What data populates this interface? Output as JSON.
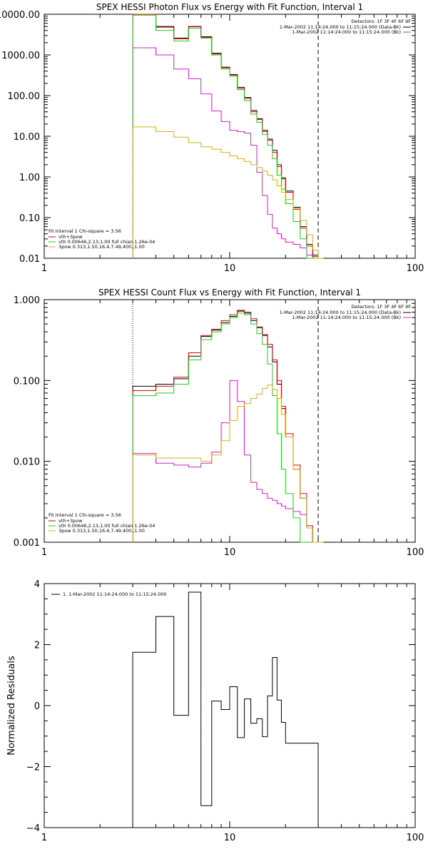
{
  "chart_data": [
    {
      "type": "line",
      "title": "SPEX HESSI Photon Flux vs Energy with Fit Function, Interval 1",
      "xscale": "log",
      "yscale": "log",
      "xlim": [
        1,
        100
      ],
      "ylim": [
        0.01,
        10000
      ],
      "x_ticks": [
        1,
        10,
        100
      ],
      "x_tick_labels": [
        "1",
        "10",
        "100"
      ],
      "y_ticks": [
        0.01,
        0.1,
        1,
        10,
        100,
        1000,
        10000
      ],
      "y_tick_labels": [
        "0.01",
        "0.10",
        "1.00",
        "10.00",
        "100.00",
        "1000.00",
        "10000.00"
      ],
      "vlines": [
        {
          "x": 3.0,
          "color": "#d4b21a",
          "style": "dotted"
        },
        {
          "x": 30.0,
          "color": "#000000",
          "style": "dashed"
        }
      ],
      "legend_top": {
        "detectors": "Detectors: 1F 3F 4F 6F 9F",
        "entries": [
          {
            "label": "1-Mar-2002 11:14:24.000 to 11:15:24.000 (Data-Bk)",
            "color": "#000000"
          },
          {
            "label": "1-Mar-2002 11:14:24.000 to 11:15:24.000 (Bk)",
            "color": "#cc22cc"
          }
        ]
      },
      "legend_bottom": {
        "header": "Fit Interval 1   Chi-square = 3.56",
        "entries": [
          {
            "label": "vth+3pow",
            "color": "#dd0000"
          },
          {
            "label": "vth 0.00646,2.13,1.00  full chian 1.26e-04",
            "color": "#22cc22"
          },
          {
            "label": "3pow 0.313,1.50,16.4,7.49,400.,1.00",
            "color": "#d4b21a"
          }
        ]
      },
      "bin_edges": [
        3.0,
        4.0,
        5.0,
        6.0,
        7.0,
        8.0,
        9.0,
        10.0,
        11.0,
        12.0,
        13.0,
        14.0,
        15.0,
        16.0,
        17.0,
        18.0,
        19.0,
        20.0,
        22.0,
        24.0,
        26.0,
        28.0,
        30.0,
        32.0
      ],
      "series": [
        {
          "name": "Data-Bk",
          "color": "#000000",
          "values": [
            10000,
            5000,
            2600,
            5000,
            2800,
            1100,
            500,
            330,
            160,
            90,
            43,
            27,
            14,
            8.5,
            4.5,
            2.0,
            0.95,
            0.45,
            0.18,
            0.06,
            0.022,
            0.012,
            0.01
          ]
        },
        {
          "name": "Bk",
          "color": "#cc22cc",
          "values": [
            1500,
            1000,
            450,
            260,
            110,
            42,
            23,
            14,
            13,
            12,
            6,
            1.3,
            0.35,
            0.12,
            0.055,
            0.04,
            0.03,
            0.025,
            0.022,
            0.018,
            0.012,
            0.01,
            0.01
          ]
        },
        {
          "name": "vth+3pow",
          "color": "#dd0000",
          "values": [
            10000,
            4800,
            2500,
            4900,
            2700,
            1050,
            480,
            320,
            150,
            85,
            40,
            26,
            13,
            8.0,
            4.0,
            1.8,
            0.9,
            0.42,
            0.16,
            0.055,
            0.02,
            0.011,
            0.01
          ]
        },
        {
          "name": "vth",
          "color": "#22cc22",
          "values": [
            9500,
            4000,
            2200,
            4500,
            2600,
            1000,
            450,
            300,
            140,
            75,
            35,
            22,
            11,
            6.0,
            2.8,
            1.1,
            0.5,
            0.22,
            0.08,
            0.03,
            0.01,
            0.01,
            0.01
          ]
        },
        {
          "name": "3pow",
          "color": "#d4b21a",
          "values": [
            17,
            13,
            9.5,
            7.0,
            5.5,
            4.8,
            4.0,
            3.3,
            2.8,
            2.4,
            2.0,
            1.7,
            1.4,
            1.1,
            0.85,
            0.6,
            0.42,
            0.28,
            0.17,
            0.085,
            0.038,
            0.016,
            0.01
          ]
        }
      ]
    },
    {
      "type": "line",
      "title": "SPEX HESSI Count Flux vs Energy with Fit Function, Interval 1",
      "xscale": "log",
      "yscale": "log",
      "xlim": [
        1,
        100
      ],
      "ylim": [
        0.001,
        1
      ],
      "x_ticks": [
        1,
        10,
        100
      ],
      "x_tick_labels": [
        "1",
        "10",
        "100"
      ],
      "y_ticks": [
        0.001,
        0.01,
        0.1,
        1
      ],
      "y_tick_labels": [
        "0.001",
        "0.010",
        "0.100",
        "1.000"
      ],
      "vlines": [
        {
          "x": 3.0,
          "color": "#000000",
          "style": "dotted"
        },
        {
          "x": 30.0,
          "color": "#000000",
          "style": "dashed"
        }
      ],
      "legend_top": {
        "detectors": "Detectors: 1F 3F 4F 6F 9F",
        "entries": [
          {
            "label": "1-Mar-2002 11:14:24.000 to 11:15:24.000 (Data-Bk)",
            "color": "#000000"
          },
          {
            "label": "1-Mar-2002 11:14:24.000 to 11:15:24.000 (Bk)",
            "color": "#cc22cc"
          }
        ]
      },
      "legend_bottom": {
        "header": "Fit Interval 1   Chi-square = 3.56",
        "entries": [
          {
            "label": "vth+3pow",
            "color": "#dd0000"
          },
          {
            "label": "vth 0.00646,2.13,1.00  full chian 1.26e-04",
            "color": "#22cc22"
          },
          {
            "label": "3pow 0.313,1.50,16.4,7.49,400.,1.00",
            "color": "#d4b21a"
          }
        ]
      },
      "bin_edges": [
        3.0,
        4.0,
        5.0,
        6.0,
        7.0,
        8.0,
        9.0,
        10.0,
        11.0,
        12.0,
        13.0,
        14.0,
        15.0,
        16.0,
        17.0,
        18.0,
        19.0,
        20.0,
        22.0,
        24.0,
        26.0,
        28.0,
        30.0,
        32.0
      ],
      "series": [
        {
          "name": "Data-Bk",
          "color": "#000000",
          "values": [
            0.085,
            0.09,
            0.105,
            0.2,
            0.35,
            0.42,
            0.52,
            0.62,
            0.72,
            0.68,
            0.55,
            0.45,
            0.36,
            0.26,
            0.17,
            0.09,
            0.045,
            0.02,
            0.008,
            0.0035,
            0.0015,
            0.001,
            0.001
          ]
        },
        {
          "name": "Bk",
          "color": "#cc22cc",
          "values": [
            0.0125,
            0.0095,
            0.009,
            0.0085,
            0.0095,
            0.013,
            0.03,
            0.1,
            0.055,
            0.012,
            0.0055,
            0.0045,
            0.004,
            0.0035,
            0.0033,
            0.003,
            0.0028,
            0.0026,
            0.0024,
            0.0022,
            0.0015,
            0.001,
            0.001
          ]
        },
        {
          "name": "vth+3pow",
          "color": "#dd0000",
          "values": [
            0.075,
            0.085,
            0.11,
            0.22,
            0.36,
            0.43,
            0.55,
            0.65,
            0.74,
            0.7,
            0.58,
            0.46,
            0.37,
            0.28,
            0.18,
            0.1,
            0.048,
            0.022,
            0.009,
            0.004,
            0.0016,
            0.001,
            0.001
          ]
        },
        {
          "name": "vth",
          "color": "#22cc22",
          "values": [
            0.065,
            0.07,
            0.09,
            0.18,
            0.32,
            0.4,
            0.5,
            0.6,
            0.68,
            0.65,
            0.5,
            0.38,
            0.28,
            0.16,
            0.065,
            0.022,
            0.008,
            0.004,
            0.002,
            0.001,
            0.001,
            0.001,
            0.001
          ]
        },
        {
          "name": "3pow",
          "color": "#d4b21a",
          "values": [
            0.012,
            0.011,
            0.011,
            0.011,
            0.01,
            0.012,
            0.018,
            0.032,
            0.048,
            0.052,
            0.06,
            0.068,
            0.08,
            0.088,
            0.078,
            0.06,
            0.038,
            0.02,
            0.008,
            0.0035,
            0.0015,
            0.001,
            0.001
          ]
        }
      ]
    },
    {
      "type": "line",
      "xscale": "log",
      "yscale": "linear",
      "xlim": [
        1,
        100
      ],
      "ylim": [
        -4,
        4
      ],
      "ylabel": "Normalized Residuals",
      "x_ticks": [
        1,
        10,
        100
      ],
      "x_tick_labels": [
        "1",
        "10",
        "100"
      ],
      "y_ticks": [
        -4,
        -2,
        0,
        2,
        4
      ],
      "y_tick_labels": [
        "−4",
        "−2",
        "0",
        "2",
        "4"
      ],
      "legend": "1. 1-Mar-2002 11:14:24.000 to 11:15:24.000",
      "bin_edges": [
        3.0,
        4.0,
        5.0,
        6.0,
        7.0,
        8.0,
        9.0,
        10.0,
        11.0,
        12.0,
        13.0,
        14.0,
        15.0,
        16.0,
        17.0,
        18.0,
        19.0,
        20.0,
        22.0,
        24.0,
        26.0,
        28.0,
        30.0
      ],
      "series": [
        {
          "name": "Residuals",
          "color": "#000000",
          "values": [
            1.75,
            2.92,
            -0.32,
            3.72,
            -3.28,
            0.15,
            -0.13,
            0.62,
            -1.05,
            0.22,
            -0.58,
            -0.43,
            -1.02,
            0.32,
            1.58,
            0.18,
            -0.55,
            -1.23,
            -1.23,
            -1.23,
            -1.23,
            -1.23
          ]
        }
      ]
    }
  ]
}
